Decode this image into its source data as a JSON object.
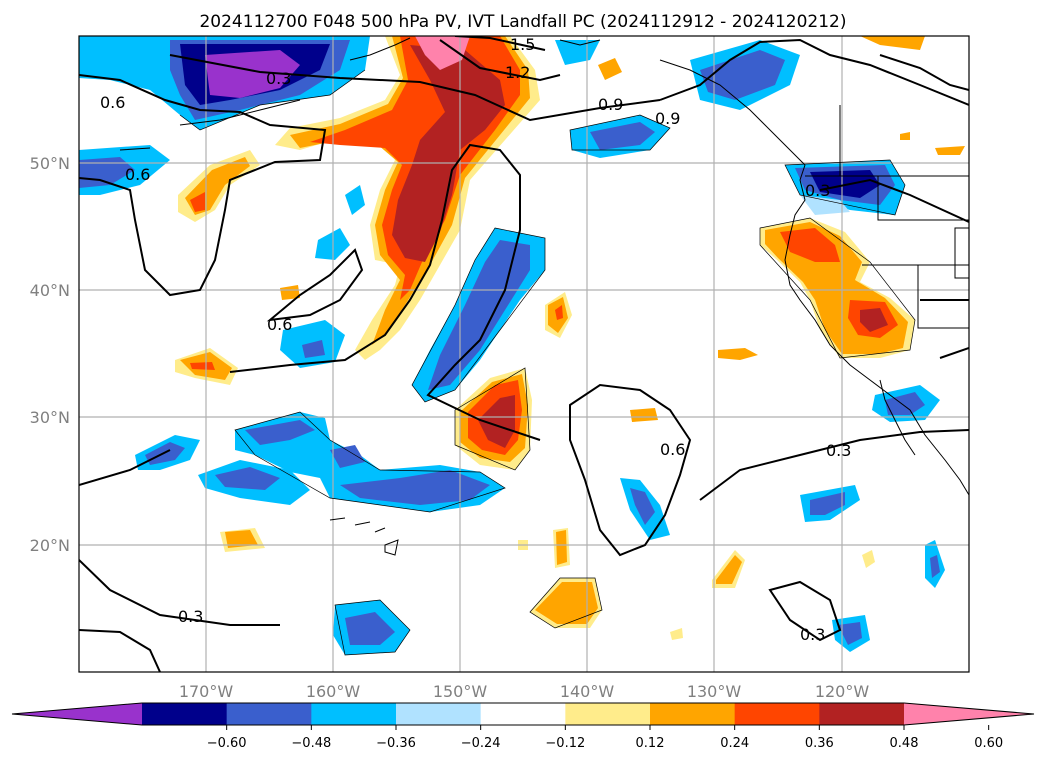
{
  "title": "2024112700 F048 500 hPa PV, IVT Landfall PC (2024112912 - 2024120212)",
  "map": {
    "lon_labels": [
      "170°W",
      "160°W",
      "150°W",
      "140°W",
      "130°W",
      "120°W"
    ],
    "lat_labels": [
      "50°N",
      "40°N",
      "30°N",
      "20°N"
    ],
    "contour_labels": [
      "1.5",
      "1.2",
      "0.9",
      "0.9",
      "0.6",
      "0.6",
      "0.6",
      "0.3",
      "0.3",
      "0.3",
      "0.3",
      "0.6",
      "0.3"
    ]
  },
  "colorbar": {
    "ticks": [
      "−0.60",
      "−0.48",
      "−0.36",
      "−0.24",
      "−0.12",
      "0.12",
      "0.24",
      "0.36",
      "0.48",
      "0.60"
    ],
    "colors": [
      "#9932cc",
      "#00008b",
      "#3a5fcd",
      "#00bfff",
      "#b0e2ff",
      "#ffffff",
      "#ffec8b",
      "#ffa500",
      "#ff4500",
      "#b22222",
      "#ff82ab"
    ]
  }
}
